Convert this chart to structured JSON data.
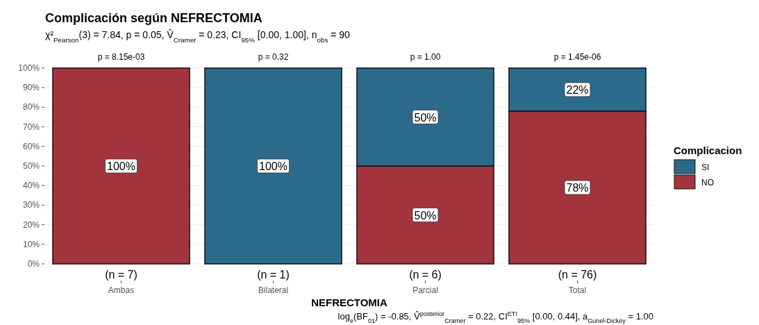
{
  "chart_data": {
    "type": "bar",
    "title": "Complicación según NEFRECTOMIA",
    "subtitle": "χ²$_{Pearson}$(3) = 7.84, p = 0.05, V̂$_{Cramer}$ = 0.23, CI$_{95%}$ [0.00, 1.00], n$_{obs}$ = 90",
    "xlabel": "NEFRECTOMIA",
    "legend_title": "Complicacion",
    "categories": [
      "Ambas",
      "Bilateral",
      "Parcial",
      "Total"
    ],
    "stacked": true,
    "series": [
      {
        "name": "NO",
        "color": "#a3343d",
        "values": [
          100,
          0,
          50,
          78
        ],
        "value_labels": [
          "100%",
          null,
          "50%",
          "78%"
        ]
      },
      {
        "name": "SI",
        "color": "#2c6a8c",
        "values": [
          0,
          100,
          50,
          22
        ],
        "value_labels": [
          null,
          "100%",
          "50%",
          "22%"
        ]
      }
    ],
    "ylim": [
      0,
      100
    ],
    "yticks": [
      {
        "value": 0,
        "label": "0%"
      },
      {
        "value": 10,
        "label": "10%"
      },
      {
        "value": 20,
        "label": "20%"
      },
      {
        "value": 30,
        "label": "30%"
      },
      {
        "value": 40,
        "label": "40%"
      },
      {
        "value": 50,
        "label": "50%"
      },
      {
        "value": 60,
        "label": "60%"
      },
      {
        "value": 70,
        "label": "70%"
      },
      {
        "value": 80,
        "label": "80%"
      },
      {
        "value": 90,
        "label": "90%"
      },
      {
        "value": 100,
        "label": "100%"
      }
    ],
    "grid": "y",
    "legend": "right",
    "annotations": [
      {
        "text": "p = 8.15e-03",
        "x": "Ambas",
        "y": 100
      },
      {
        "text": "p = 0.32",
        "x": "Bilateral",
        "y": 100
      },
      {
        "text": "p = 1.00",
        "x": "Parcial",
        "y": 100
      },
      {
        "text": "p = 1.45e-06",
        "x": "Total",
        "y": 100
      },
      {
        "text": "(n = 7)",
        "x": "Ambas",
        "y": 0
      },
      {
        "text": "(n = 1)",
        "x": "Bilateral",
        "y": 0
      },
      {
        "text": "(n = 6)",
        "x": "Parcial",
        "y": 0
      },
      {
        "text": "(n = 76)",
        "x": "Total",
        "y": 0
      },
      "log$_{e}$(BF$_{01}$) = -0.85, V̂$^{posterior}$$_{Cramer}$ = 0.22, CI$^{ETI}$$_{95%}$ [0.00, 0.44], a$_{Gunel-Dickey}$ = 1.00"
    ]
  }
}
